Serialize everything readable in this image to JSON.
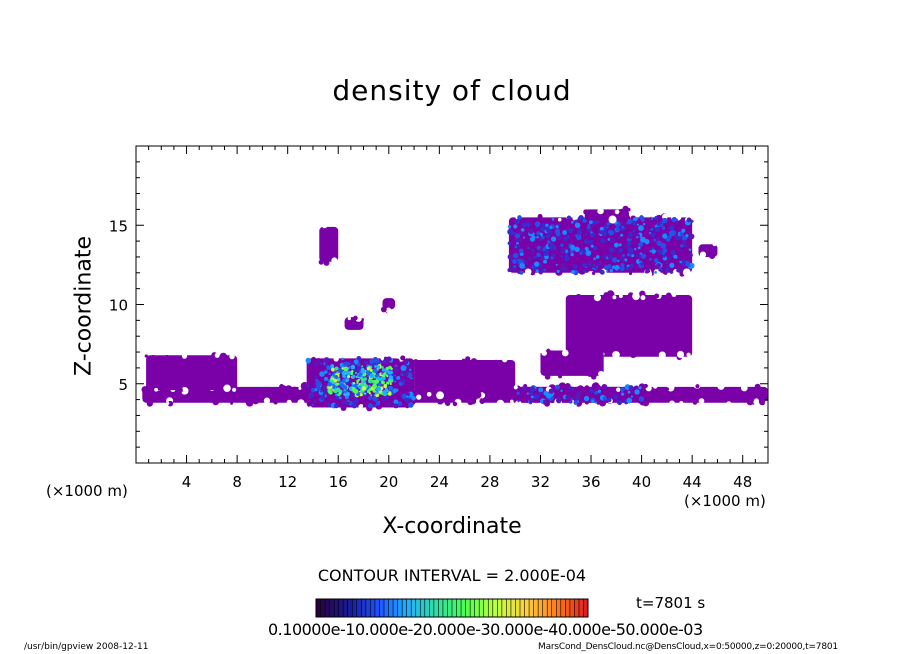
{
  "chart_data": {
    "type": "heatmap",
    "title": "density of cloud",
    "xlabel": "X-coordinate",
    "ylabel": "Z-coordinate",
    "x_unit": "(×1000 m)",
    "y_unit": "(×1000 m)",
    "xlim": [
      0,
      50
    ],
    "ylim": [
      0,
      20
    ],
    "x_ticks": [
      4,
      8,
      12,
      16,
      20,
      24,
      28,
      32,
      36,
      40,
      44,
      48
    ],
    "y_ticks": [
      5,
      10,
      15
    ],
    "contour_interval": "CONTOUR INTERVAL = 2.000E-04",
    "time": "t=7801 s",
    "colorbar_labels": "0.10000e-10.000e-20.000e-30.000e-40.000e-50.000e-03",
    "colorbar_colors": [
      "#2a0040",
      "#1a1a90",
      "#2050ff",
      "#20b0ff",
      "#30e0a0",
      "#50ff50",
      "#c0ff40",
      "#ffd040",
      "#ff8020",
      "#e02020"
    ],
    "cloud_regions": [
      {
        "x": [
          0.5,
          50
        ],
        "z": [
          3.8,
          4.8
        ],
        "level": "low"
      },
      {
        "x": [
          0.8,
          8
        ],
        "z": [
          4.6,
          6.8
        ],
        "level": "low"
      },
      {
        "x": [
          13.5,
          22
        ],
        "z": [
          3.5,
          6.6
        ],
        "level": "high"
      },
      {
        "x": [
          22,
          30
        ],
        "z": [
          4.2,
          6.5
        ],
        "level": "low"
      },
      {
        "x": [
          14.5,
          16
        ],
        "z": [
          12.7,
          14.9
        ],
        "level": "low"
      },
      {
        "x": [
          16.5,
          18
        ],
        "z": [
          8.4,
          9.2
        ],
        "level": "low"
      },
      {
        "x": [
          19.5,
          20.5
        ],
        "z": [
          9.7,
          10.4
        ],
        "level": "low"
      },
      {
        "x": [
          29.5,
          44
        ],
        "z": [
          12.0,
          15.5
        ],
        "level": "medium"
      },
      {
        "x": [
          35.5,
          39
        ],
        "z": [
          15.3,
          16
        ],
        "level": "low"
      },
      {
        "x": [
          44.5,
          46
        ],
        "z": [
          13.0,
          13.8
        ],
        "level": "low"
      },
      {
        "x": [
          34,
          44
        ],
        "z": [
          6.7,
          10.6
        ],
        "level": "low"
      },
      {
        "x": [
          32,
          37
        ],
        "z": [
          5.5,
          7.1
        ],
        "level": "low"
      },
      {
        "x": [
          30,
          40
        ],
        "z": [
          3.8,
          4.8
        ],
        "level": "medium"
      }
    ]
  },
  "footer_left": "/usr/bin/gpview  2008-12-11",
  "footer_right": "MarsCond_DensCloud.nc@DensCloud,x=0:50000,z=0:20000,t=7801"
}
